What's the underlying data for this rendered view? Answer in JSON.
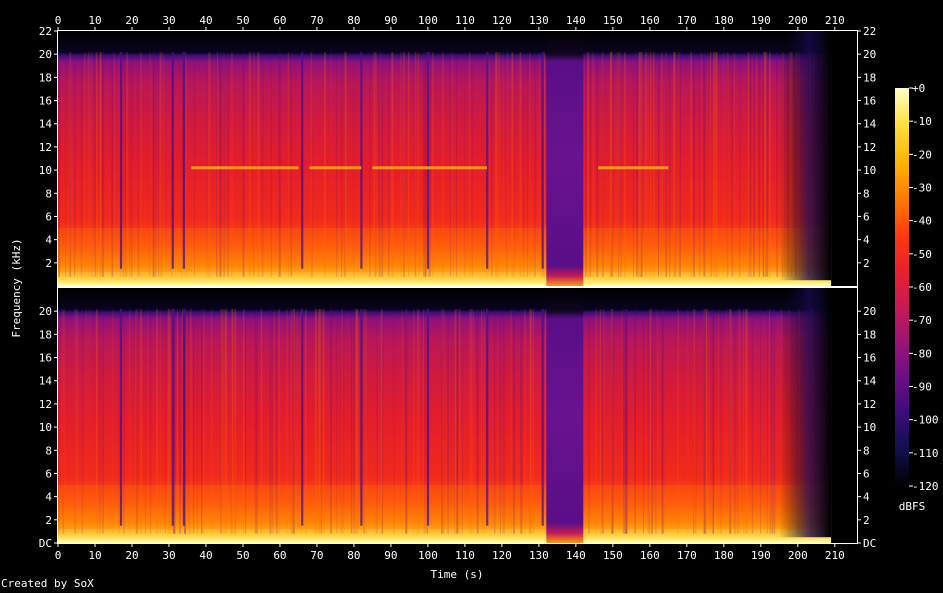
{
  "chart_data": {
    "type": "heatmap",
    "title": "",
    "xlabel": "Time (s)",
    "ylabel": "Frequency (kHz)",
    "x_ticks": [
      "0",
      "10",
      "20",
      "30",
      "40",
      "50",
      "60",
      "70",
      "80",
      "90",
      "100",
      "110",
      "120",
      "130",
      "140",
      "150",
      "160",
      "170",
      "180",
      "190",
      "200",
      "210"
    ],
    "y_ticks_upper": [
      "2",
      "4",
      "6",
      "8",
      "10",
      "12",
      "14",
      "16",
      "18",
      "20",
      "22"
    ],
    "y_ticks_lower": [
      "DC",
      "2",
      "4",
      "6",
      "8",
      "10",
      "12",
      "14",
      "16",
      "18",
      "20"
    ],
    "xlim": [
      0,
      216
    ],
    "ylim_khz": [
      0,
      22
    ],
    "channels": 2,
    "colorbar": {
      "unit": "dBFS",
      "ticks": [
        "+0",
        "-10",
        "-20",
        "-30",
        "-40",
        "-50",
        "-60",
        "-70",
        "-80",
        "-90",
        "-100",
        "-110",
        "-120"
      ],
      "range": [
        -120,
        0
      ]
    },
    "features": {
      "signal_end_s": 207,
      "rolloff_khz": 20,
      "quiet_section_s": [
        132,
        142
      ],
      "quiet_section_top_khz": 1,
      "tone_line_khz": 10.2,
      "tone_line_spans_s": [
        [
          36,
          65
        ],
        [
          68,
          82
        ],
        [
          85,
          116
        ],
        [
          146,
          165
        ]
      ],
      "vertical_dips_s": [
        17,
        31,
        34,
        66,
        82,
        100,
        116,
        131
      ]
    }
  },
  "footer": {
    "credit": "Created by SoX"
  },
  "colors": {
    "background": "#000000",
    "text": "#ffffff",
    "ramp": [
      "#000000",
      "#10104a",
      "#3a0c7a",
      "#6a0e84",
      "#9a1478",
      "#c81a56",
      "#e8202c",
      "#ff3a10",
      "#ff7a00",
      "#ffb200",
      "#ffe040",
      "#ffffc8"
    ]
  }
}
